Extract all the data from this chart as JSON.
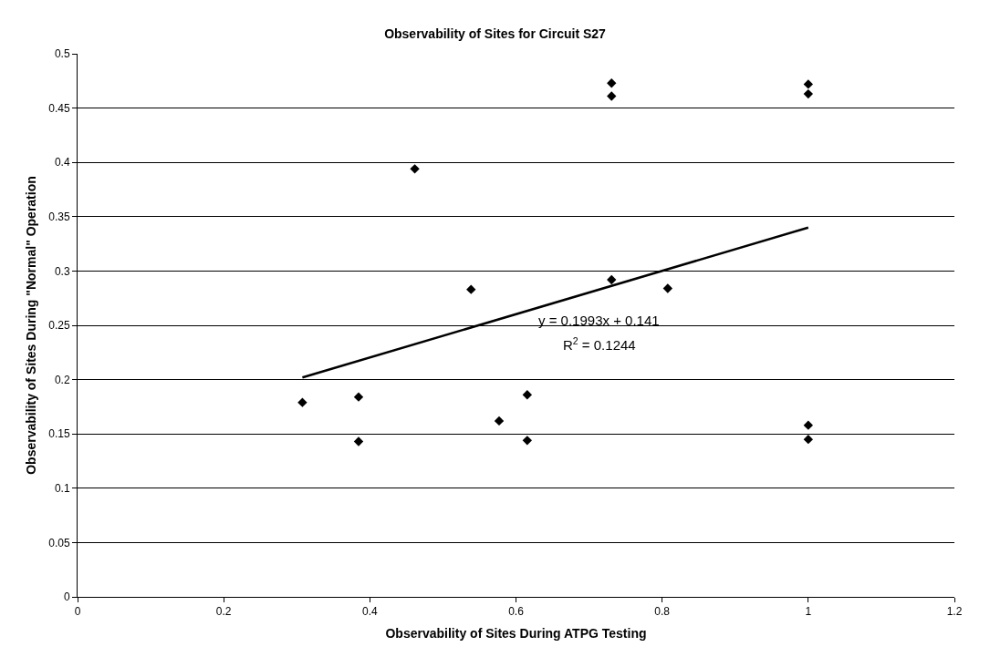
{
  "chart_data": {
    "type": "scatter",
    "title": "Observability of Sites for Circuit S27",
    "xlabel": "Observability of Sites During ATPG Testing",
    "ylabel": "Observability of Sites During \"Normal\" Operation",
    "series": [
      {
        "color": "#000000",
        "marker": "diamond",
        "x": [
          0.3077,
          0.3846,
          0.3846,
          0.4615,
          0.5385,
          0.5769,
          0.6154,
          0.6154,
          0.7308,
          0.7308,
          0.7308,
          0.8077,
          1,
          1,
          1,
          1
        ],
        "values": [
          0.179,
          0.184,
          0.143,
          0.394,
          0.283,
          0.162,
          0.186,
          0.144,
          0.473,
          0.461,
          0.292,
          0.284,
          0.472,
          0.463,
          0.158,
          0.145
        ]
      },
      {
        "type": "line",
        "color": "#000000",
        "marker": "none",
        "line_style": "solid",
        "x": [
          0.3077,
          1
        ],
        "values": [
          0.202,
          0.34
        ]
      }
    ],
    "annotations": [
      "y = 0.1993x + 0.141",
      "R$^{2}$ = 0.1244"
    ],
    "xlim": [
      0,
      1.2
    ],
    "xticks": [
      0,
      0.2,
      0.4,
      0.6,
      0.8,
      1,
      1.2
    ],
    "ylim": [
      0,
      0.5
    ],
    "yticks": [
      0,
      0.05,
      0.1,
      0.15,
      0.2,
      0.25,
      0.3,
      0.35,
      0.4,
      0.45,
      0.5
    ],
    "grid": "y",
    "legend": false
  }
}
